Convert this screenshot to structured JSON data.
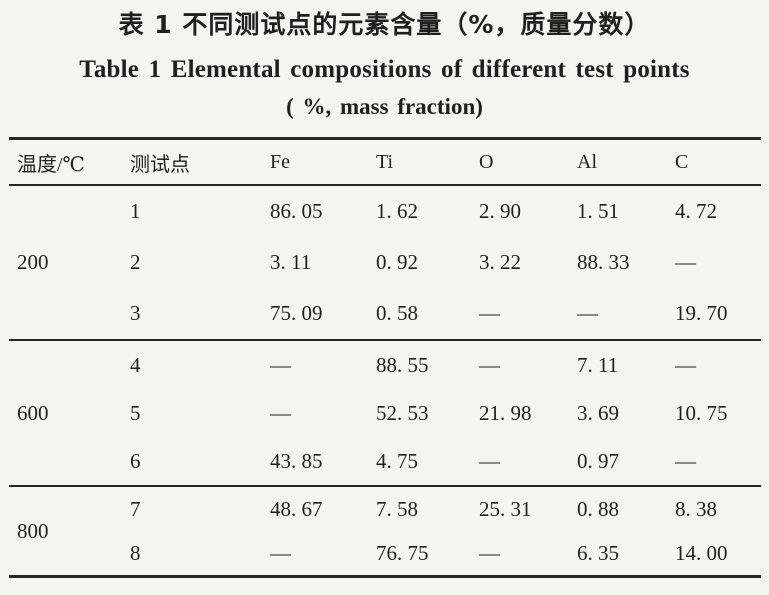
{
  "titles": {
    "zh": "表 1  不同测试点的元素含量（%，质量分数）",
    "en_line1": "Table 1  Elemental compositions of different test points",
    "en_line2": "( %, mass fraction)"
  },
  "table": {
    "columns": [
      "温度/℃",
      "测试点",
      "Fe",
      "Ti",
      "O",
      "Al",
      "C"
    ],
    "column_keys": [
      "temperature",
      "test-point",
      "fe",
      "ti",
      "o",
      "al",
      "c"
    ],
    "empty_marker": "—",
    "groups": [
      {
        "temperature": "200",
        "rows": [
          {
            "point": "1",
            "values": [
              "86. 05",
              "1. 62",
              "2. 90",
              "1. 51",
              "4. 72"
            ]
          },
          {
            "point": "2",
            "values": [
              "3. 11",
              "0. 92",
              "3. 22",
              "88. 33",
              "—"
            ]
          },
          {
            "point": "3",
            "values": [
              "75. 09",
              "0. 58",
              "—",
              "—",
              "19. 70"
            ]
          }
        ]
      },
      {
        "temperature": "600",
        "rows": [
          {
            "point": "4",
            "values": [
              "—",
              "88. 55",
              "—",
              "7. 11",
              "—"
            ]
          },
          {
            "point": "5",
            "values": [
              "—",
              "52. 53",
              "21. 98",
              "3. 69",
              "10. 75"
            ]
          },
          {
            "point": "6",
            "values": [
              "43. 85",
              "4. 75",
              "—",
              "0. 97",
              "—"
            ]
          }
        ]
      },
      {
        "temperature": "800",
        "rows": [
          {
            "point": "7",
            "values": [
              "48. 67",
              "7. 58",
              "25. 31",
              "0. 88",
              "8. 38"
            ]
          },
          {
            "point": "8",
            "values": [
              "—",
              "76. 75",
              "—",
              "6. 35",
              "14. 00"
            ]
          }
        ]
      }
    ]
  }
}
